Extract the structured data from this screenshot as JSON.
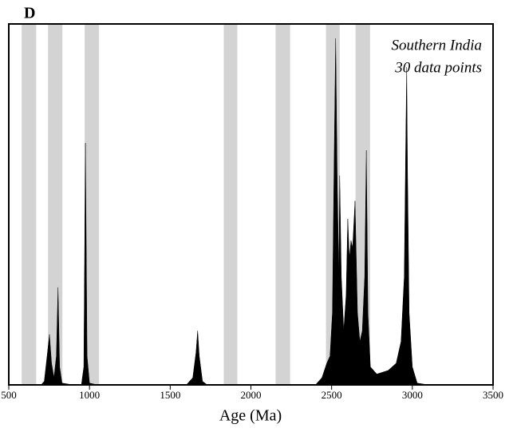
{
  "chart_data": {
    "type": "area",
    "panel_label": "D",
    "annotation": [
      "Southern India",
      "30 data points"
    ],
    "x_label": "Age (Ma)",
    "xlim": [
      500,
      3500
    ],
    "xticks": [
      500,
      1000,
      1500,
      2000,
      2500,
      3000,
      3500
    ],
    "ylim": [
      0,
      100
    ],
    "band_color": "#d3d3d3",
    "bands": [
      [
        580,
        670
      ],
      [
        743,
        832
      ],
      [
        970,
        1059
      ],
      [
        1832,
        1916
      ],
      [
        2153,
        2243
      ],
      [
        2465,
        2550
      ],
      [
        2648,
        2738
      ]
    ],
    "color": "#000000",
    "x": [
      500,
      700,
      720,
      740,
      752,
      765,
      780,
      795,
      805,
      815,
      830,
      900,
      950,
      965,
      975,
      985,
      1000,
      1050,
      1600,
      1640,
      1660,
      1670,
      1680,
      1700,
      1730,
      2400,
      2440,
      2470,
      2490,
      2505,
      2515,
      2525,
      2535,
      2545,
      2550,
      2560,
      2575,
      2590,
      2600,
      2610,
      2620,
      2630,
      2645,
      2660,
      2675,
      2690,
      2705,
      2715,
      2725,
      2740,
      2780,
      2850,
      2900,
      2930,
      2950,
      2960,
      2965,
      2970,
      2980,
      3000,
      3030,
      3100,
      3500
    ],
    "values": [
      0,
      0,
      1,
      9,
      14,
      6,
      2,
      8,
      27,
      5,
      0.5,
      0,
      0,
      5,
      67,
      8,
      0.5,
      0,
      0,
      2,
      9,
      15,
      8,
      1,
      0,
      0,
      2,
      6,
      8,
      20,
      60,
      96,
      55,
      30,
      58,
      30,
      15,
      25,
      46,
      35,
      40,
      38,
      51,
      20,
      12,
      15,
      30,
      65,
      20,
      5,
      3,
      4,
      6,
      12,
      30,
      70,
      88,
      60,
      20,
      5,
      0.5,
      0,
      0
    ]
  }
}
